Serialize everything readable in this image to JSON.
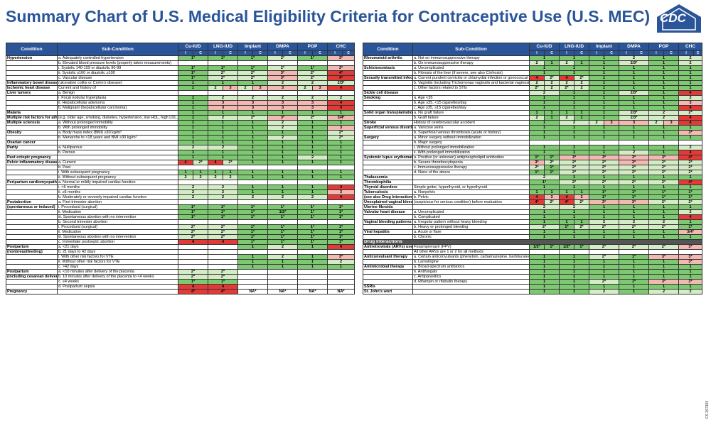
{
  "title": "Summary Chart of U.S. Medical Eligibility Criteria for Contraceptive Use (U.S. MEC)",
  "logo": "CDC",
  "colors": {
    "c1": "#7ec872",
    "c2": "#d4ecc6",
    "c3": "#f4b8b3",
    "c4": "#e23a37",
    "header": "#2b5599"
  },
  "headers": {
    "condition": "Condition",
    "subcondition": "Sub-Condition",
    "methods": [
      "Cu-IUD",
      "LNG-IUD",
      "Implant",
      "DMPA",
      "POP",
      "CHC"
    ],
    "ic": [
      "I",
      "C"
    ]
  },
  "footnote": "CS 267303",
  "left": [
    {
      "c": "Hypertension",
      "s": "a. Adequately controlled hypertension",
      "v": [
        "1*",
        "",
        "1*",
        "",
        "1*",
        "2*",
        "1*",
        "3*"
      ]
    },
    {
      "c": "",
      "s": "b. Elevated blood pressure levels (properly taken measurements)",
      "v": [
        "",
        "",
        "",
        "",
        "",
        "",
        "",
        ""
      ]
    },
    {
      "c": "",
      "s": "i. Systolic 140-159 or diastolic 90-99",
      "v": [
        "1*",
        "",
        "1*",
        "",
        "1*",
        "2*",
        "1*",
        "3*"
      ]
    },
    {
      "c": "",
      "s": "ii. Systolic ≥160 or diastolic ≥100",
      "v": [
        "1*",
        "",
        "2*",
        "",
        "2*",
        "3*",
        "2*",
        "4*"
      ]
    },
    {
      "c": "",
      "s": "c. Vascular disease",
      "v": [
        "1*",
        "",
        "2*",
        "",
        "2*",
        "3*",
        "2*",
        "4*"
      ]
    },
    {
      "c": "Inflammatory bowel disease",
      "s": "(ulcerative colitis or Crohn's disease)",
      "v": [
        "1",
        "",
        "1",
        "",
        "1",
        "2",
        "2",
        "2/3*"
      ]
    },
    {
      "c": "Ischemic heart disease",
      "s": "Current and history of",
      "v": [
        "1",
        "",
        "2",
        "3",
        "2|3",
        "3",
        "2|3",
        "4"
      ]
    },
    {
      "c": "Liver tumors",
      "s": "a. Benign",
      "v": [
        "",
        "",
        "",
        "",
        "",
        "",
        "",
        ""
      ]
    },
    {
      "c": "",
      "s": "i. Focal nodular hyperplasia",
      "v": [
        "1",
        "",
        "2",
        "",
        "2",
        "2",
        "2",
        "2"
      ]
    },
    {
      "c": "",
      "s": "ii. Hepatocellular adenoma",
      "v": [
        "1",
        "",
        "3",
        "",
        "3",
        "3",
        "3",
        "4"
      ]
    },
    {
      "c": "",
      "s": "b. Malignant (hepatocellular carcinoma)",
      "v": [
        "1",
        "",
        "3",
        "",
        "3",
        "3",
        "3",
        "4"
      ]
    },
    {
      "c": "Malaria",
      "s": "",
      "v": [
        "1",
        "",
        "1",
        "",
        "1",
        "1",
        "1",
        "1"
      ]
    },
    {
      "c": "Multiple risk factors for atherosclerotic cardiovascular disease",
      "s": "(e.g. older age, smoking, diabetes, hypertension, low HDL, high LDL, or high triglyceride levels)",
      "v": [
        "1",
        "",
        "2",
        "",
        "2*",
        "3*",
        "2*",
        "3/4*"
      ]
    },
    {
      "c": "Multiple sclerosis",
      "s": "a. Without prolonged immobility",
      "v": [
        "1",
        "",
        "1",
        "",
        "1",
        "2",
        "1",
        "1"
      ]
    },
    {
      "c": "",
      "s": "b. With prolonged immobility",
      "v": [
        "1",
        "",
        "1",
        "",
        "1",
        "2",
        "1",
        "3"
      ]
    },
    {
      "c": "Obesity",
      "s": "a. Body mass index (BMI) ≥30 kg/m²",
      "v": [
        "1",
        "",
        "1",
        "",
        "1",
        "1",
        "1",
        "2*"
      ]
    },
    {
      "c": "",
      "s": "b. Menarche to <18 years and BMI ≥30 kg/m²",
      "v": [
        "1",
        "",
        "1",
        "",
        "1",
        "2",
        "1",
        "2*"
      ]
    },
    {
      "c": "Ovarian cancer",
      "s": "",
      "v": [
        "1",
        "",
        "1",
        "",
        "1",
        "1",
        "1",
        "1"
      ]
    },
    {
      "c": "Parity",
      "s": "a. Nulliparous",
      "v": [
        "2",
        "",
        "2",
        "",
        "1",
        "1",
        "1",
        "1"
      ]
    },
    {
      "c": "",
      "s": "b. Parous",
      "v": [
        "1",
        "",
        "1",
        "",
        "1",
        "1",
        "1",
        "1"
      ]
    },
    {
      "c": "Past ectopic pregnancy",
      "s": "",
      "v": [
        "1",
        "",
        "1",
        "",
        "1",
        "1",
        "2",
        "1"
      ]
    },
    {
      "c": "Pelvic inflammatory disease",
      "s": "a. Current",
      "v": [
        "4",
        "2*",
        "4",
        "2*",
        "1",
        "1",
        "1",
        "1"
      ]
    },
    {
      "c": "",
      "s": "b. Past",
      "v": [
        "",
        "",
        "",
        "",
        "",
        "",
        "",
        ""
      ]
    },
    {
      "c": "",
      "s": "i. With subsequent pregnancy",
      "v": [
        "1",
        "1",
        "1",
        "1",
        "1",
        "1",
        "1",
        "1"
      ]
    },
    {
      "c": "",
      "s": "ii. Without subsequent pregnancy",
      "v": [
        "2",
        "2",
        "2",
        "2",
        "1",
        "1",
        "1",
        "1"
      ]
    },
    {
      "c": "Peripartum cardiomyopathy",
      "s": "a. Normal or mildly impaired cardiac function",
      "v": [
        "",
        "",
        "",
        "",
        "",
        "",
        "",
        ""
      ]
    },
    {
      "c": "",
      "s": "i. <6 months",
      "v": [
        "2",
        "",
        "2",
        "",
        "1",
        "1",
        "1",
        "4"
      ]
    },
    {
      "c": "",
      "s": "ii. ≥6 months",
      "v": [
        "2",
        "",
        "2",
        "",
        "1",
        "1",
        "1",
        "3"
      ]
    },
    {
      "c": "",
      "s": "b. Moderately or severely impaired cardiac function",
      "v": [
        "2",
        "",
        "2",
        "",
        "2",
        "2",
        "2",
        "4"
      ]
    },
    {
      "c": "Postabortion",
      "s": "a. First trimester abortion",
      "v": [
        "",
        "",
        "",
        "",
        "",
        "",
        "",
        ""
      ]
    },
    {
      "c": "(spontaneous or induced)",
      "s": "i. Procedural (surgical)",
      "v": [
        "1*",
        "",
        "1*",
        "",
        "1*",
        "1*",
        "1*",
        "1*"
      ]
    },
    {
      "c": "",
      "s": "ii. Medication",
      "v": [
        "1*",
        "",
        "1*",
        "",
        "1*",
        "1/2*",
        "1*",
        "1*"
      ]
    },
    {
      "c": "",
      "s": "iii. Spontaneous abortion with no intervention",
      "v": [
        "1*",
        "",
        "1*",
        "",
        "1*",
        "1*",
        "1*",
        "1*"
      ]
    },
    {
      "c": "",
      "s": "b. Second trimester abortion",
      "v": [
        "",
        "",
        "",
        "",
        "",
        "",
        "",
        ""
      ]
    },
    {
      "c": "",
      "s": "i. Procedural (surgical)",
      "v": [
        "2*",
        "",
        "2*",
        "",
        "1*",
        "1*",
        "1*",
        "1*"
      ]
    },
    {
      "c": "",
      "s": "ii. Medication",
      "v": [
        "2*",
        "",
        "2*",
        "",
        "1*",
        "1*",
        "1*",
        "1*"
      ]
    },
    {
      "c": "",
      "s": "iii. Spontaneous abortion with no intervention",
      "v": [
        "2*",
        "",
        "2*",
        "",
        "1*",
        "1*",
        "1*",
        "1*"
      ]
    },
    {
      "c": "",
      "s": "c. Immediate postseptic abortion",
      "v": [
        "4",
        "",
        "4",
        "",
        "1*",
        "1*",
        "1*",
        "1*"
      ]
    },
    {
      "c": "Postpartum",
      "s": "a. <21 days",
      "v": [
        "",
        "",
        "",
        "",
        "1",
        "2",
        "1",
        "4"
      ]
    },
    {
      "c": "(nonbreastfeeding)",
      "s": "b. 21 days to 42 days",
      "v": [
        "",
        "",
        "",
        "",
        "",
        "",
        "",
        ""
      ]
    },
    {
      "c": "",
      "s": "i. With other risk factors for VTE",
      "v": [
        "",
        "",
        "",
        "",
        "1",
        "2",
        "1",
        "3*"
      ]
    },
    {
      "c": "",
      "s": "ii. Without other risk factors for VTE",
      "v": [
        "",
        "",
        "",
        "",
        "1",
        "1",
        "1",
        "2"
      ]
    },
    {
      "c": "",
      "s": "c. >42 days",
      "v": [
        "",
        "",
        "",
        "",
        "1",
        "1",
        "1",
        "1"
      ]
    },
    {
      "c": "Postpartum",
      "s": "a. <10 minutes after delivery of the placenta",
      "v": [
        "2*",
        "",
        "2*",
        "",
        "",
        "",
        "",
        ""
      ]
    },
    {
      "c": "(including cesarean delivery, breastfeeding, or nonbreastfeeding)",
      "s": "b. 10 minutes after delivery of the placenta to <4 weeks",
      "v": [
        "2*",
        "",
        "2*",
        "",
        "",
        "",
        "",
        ""
      ]
    },
    {
      "c": "",
      "s": "c. ≥4 weeks",
      "v": [
        "1*",
        "",
        "1*",
        "",
        "",
        "",
        "",
        ""
      ]
    },
    {
      "c": "",
      "s": "d. Postpartum sepsis",
      "v": [
        "4",
        "",
        "4",
        "",
        "",
        "",
        "",
        ""
      ]
    },
    {
      "c": "Pregnancy",
      "s": "",
      "v": [
        "4*",
        "",
        "4*",
        "",
        "NA*",
        "NA*",
        "NA*",
        "NA*"
      ]
    }
  ],
  "right": [
    {
      "c": "Rheumatoid arthritis",
      "s": "a. Not on immunosuppressive therapy",
      "v": [
        "1",
        "",
        "1",
        "",
        "1",
        "2",
        "1",
        "2"
      ]
    },
    {
      "c": "",
      "s": "b. On immunosuppressive therapy",
      "v": [
        "2",
        "1",
        "2",
        "1",
        "1",
        "2/3*",
        "1",
        "2"
      ]
    },
    {
      "c": "Schistosomiasis",
      "s": "a. Uncomplicated",
      "v": [
        "1",
        "",
        "1",
        "",
        "1",
        "1",
        "1",
        "1"
      ]
    },
    {
      "c": "",
      "s": "b. Fibrosis of the liver (if severe, see also Cirrhosis)",
      "v": [
        "1",
        "",
        "1",
        "",
        "1",
        "1",
        "1",
        "1"
      ]
    },
    {
      "c": "Sexually transmitted infections (STIs)",
      "s": "a. Current purulent cervicitis or chlamydial infection or gonococcal infection",
      "v": [
        "4",
        "2*",
        "4",
        "2*",
        "1",
        "1",
        "1",
        "1"
      ]
    },
    {
      "c": "",
      "s": "b. Vaginitis (including Trichomonas vaginalis and bacterial vaginosis)",
      "v": [
        "2",
        "2",
        "2",
        "2",
        "1",
        "1",
        "1",
        "1"
      ]
    },
    {
      "c": "",
      "s": "c. Other factors related to STIs",
      "v": [
        "2*",
        "2",
        "2*",
        "2",
        "1",
        "1",
        "1",
        "1"
      ]
    },
    {
      "c": "Sickle cell disease",
      "s": "",
      "v": [
        "2",
        "",
        "1",
        "",
        "1",
        "2/3*",
        "1",
        "4"
      ]
    },
    {
      "c": "Smoking",
      "s": "a. Age <35",
      "v": [
        "1",
        "",
        "1",
        "",
        "1",
        "1",
        "1",
        "2"
      ]
    },
    {
      "c": "",
      "s": "b. Age ≥35, <15 cigarettes/day",
      "v": [
        "1",
        "",
        "1",
        "",
        "1",
        "1",
        "1",
        "3"
      ]
    },
    {
      "c": "",
      "s": "c. Age ≥35, ≥15 cigarettes/day",
      "v": [
        "1",
        "",
        "1",
        "",
        "1",
        "1",
        "1",
        "4"
      ]
    },
    {
      "c": "Solid organ transplantation",
      "s": "a. No graft failure",
      "v": [
        "1",
        "1",
        "1",
        "1",
        "1",
        "2/3*",
        "2",
        "2*"
      ]
    },
    {
      "c": "",
      "s": "b. Graft failure",
      "v": [
        "2",
        "1",
        "2",
        "1",
        "1",
        "2/3*",
        "2",
        "4"
      ]
    },
    {
      "c": "Stroke",
      "s": "History of cerebrovascular accident",
      "v": [
        "1",
        "",
        "2",
        "",
        "2|3",
        "3",
        "2|3",
        "4"
      ]
    },
    {
      "c": "Superficial venous disorders",
      "s": "a. Varicose veins",
      "v": [
        "1",
        "",
        "1",
        "",
        "1",
        "1",
        "1",
        "1"
      ]
    },
    {
      "c": "",
      "s": "b. Superficial venous thrombosis (acute or history)",
      "v": [
        "1",
        "",
        "1",
        "",
        "1",
        "1",
        "1",
        "3*"
      ]
    },
    {
      "c": "Surgery",
      "s": "a. Minor surgery without immobilization",
      "v": [
        "1",
        "",
        "1",
        "",
        "1",
        "1",
        "1",
        "1"
      ]
    },
    {
      "c": "",
      "s": "b. Major surgery",
      "v": [
        "",
        "",
        "",
        "",
        "",
        "",
        "",
        ""
      ]
    },
    {
      "c": "",
      "s": "i. Without prolonged immobilization",
      "v": [
        "1",
        "",
        "1",
        "",
        "1",
        "1",
        "1",
        "2"
      ]
    },
    {
      "c": "",
      "s": "ii. With prolonged immobilization",
      "v": [
        "1",
        "",
        "1",
        "",
        "1",
        "2",
        "1",
        "4"
      ]
    },
    {
      "c": "Systemic lupus erythematosus",
      "s": "a. Positive (or unknown) antiphospholipid antibodies",
      "v": [
        "1*",
        "1*",
        "3*",
        "",
        "3*",
        "3*",
        "3*",
        "4*"
      ]
    },
    {
      "c": "",
      "s": "b. Severe thrombocytopenia",
      "v": [
        "3*",
        "2*",
        "2*",
        "",
        "2*",
        "3*",
        "2*",
        "2*"
      ]
    },
    {
      "c": "",
      "s": "c. Immunosuppressive therapy",
      "v": [
        "2*",
        "1*",
        "2*",
        "",
        "2*",
        "2*",
        "2*",
        "2*"
      ]
    },
    {
      "c": "",
      "s": "d. None of the above",
      "v": [
        "1*",
        "1*",
        "2*",
        "",
        "2*",
        "2*",
        "2*",
        "2*"
      ]
    },
    {
      "c": "Thalassemia",
      "s": "",
      "v": [
        "2",
        "",
        "1",
        "",
        "1",
        "1",
        "1",
        "1"
      ]
    },
    {
      "c": "Thrombophilia",
      "s": "",
      "v": [
        "1*",
        "",
        "2*",
        "",
        "2*",
        "2*",
        "2*",
        "4*"
      ]
    },
    {
      "c": "Thyroid disorders",
      "s": "Simple goiter, hyperthyroid, or hypothyroid",
      "v": [
        "1",
        "",
        "1",
        "",
        "1",
        "1",
        "1",
        "1"
      ]
    },
    {
      "c": "Tuberculosis",
      "s": "a. Nonpelvic",
      "v": [
        "1",
        "1",
        "1",
        "1",
        "1*",
        "1*",
        "1*",
        "1*"
      ]
    },
    {
      "c": "(see also Drug Interactions)",
      "s": "b. Pelvic",
      "v": [
        "4",
        "3",
        "4",
        "3",
        "1*",
        "1*",
        "1*",
        "1*"
      ]
    },
    {
      "c": "Unexplained vaginal bleeding",
      "s": "(suspicious for serious condition) before evaluation",
      "v": [
        "4*",
        "2*",
        "4*",
        "2*",
        "3*",
        "3*",
        "2*",
        "2*"
      ]
    },
    {
      "c": "Uterine fibroids",
      "s": "",
      "v": [
        "2",
        "",
        "2",
        "",
        "1",
        "1",
        "1",
        "1"
      ]
    },
    {
      "c": "Valvular heart disease",
      "s": "a. Uncomplicated",
      "v": [
        "1",
        "",
        "1",
        "",
        "1",
        "1",
        "1",
        "2"
      ]
    },
    {
      "c": "",
      "s": "b. Complicated",
      "v": [
        "1",
        "",
        "1",
        "",
        "1",
        "1",
        "1",
        "4"
      ]
    },
    {
      "c": "Vaginal bleeding patterns",
      "s": "a. Irregular pattern without heavy bleeding",
      "v": [
        "1",
        "",
        "1",
        "1",
        "2",
        "2",
        "2",
        "1"
      ]
    },
    {
      "c": "",
      "s": "b. Heavy or prolonged bleeding",
      "v": [
        "2*",
        "",
        "1*",
        "2*",
        "2*",
        "2*",
        "2*",
        "1*"
      ]
    },
    {
      "c": "Viral hepatitis",
      "s": "a. Acute or flare",
      "v": [
        "1",
        "",
        "1",
        "",
        "1",
        "1",
        "1",
        "3/4*"
      ]
    },
    {
      "c": "",
      "s": "b. Chronic",
      "v": [
        "1",
        "",
        "1",
        "",
        "1",
        "1",
        "1",
        "1"
      ]
    },
    {
      "sec": "Drug Interactions"
    },
    {
      "c": "Antiretrovirals (ARVs) used for prevention (PrEP) or treatment of HIV",
      "s": "Fosamprenavir (FPV)",
      "v": [
        "1/2*",
        "1*",
        "1/2*",
        "1*",
        "2*",
        "2*",
        "2*",
        "3*"
      ]
    },
    {
      "c": "",
      "s": "All other ARVs are 1 or 2 for all methods",
      "v": [
        "",
        "",
        "",
        "",
        "",
        "",
        "",
        ""
      ]
    },
    {
      "c": "Anticonvulsant therapy",
      "s": "a. Certain anticonvulsants (phenytoin, carbamazepine, barbiturates, primidone, topiramate, oxcarbazepine)",
      "v": [
        "1",
        "",
        "1",
        "",
        "2*",
        "1*",
        "3*",
        "3*"
      ]
    },
    {
      "c": "",
      "s": "b. Lamotrigine",
      "v": [
        "1",
        "",
        "1",
        "",
        "1",
        "1",
        "1",
        "3*"
      ]
    },
    {
      "c": "Antimicrobial therapy",
      "s": "a. Broad-spectrum antibiotics",
      "v": [
        "1",
        "",
        "1",
        "",
        "1",
        "1",
        "1",
        "1"
      ]
    },
    {
      "c": "",
      "s": "b. Antifungals",
      "v": [
        "1",
        "",
        "1",
        "",
        "1",
        "1",
        "1",
        "1"
      ]
    },
    {
      "c": "",
      "s": "c. Antiparasitics",
      "v": [
        "1",
        "",
        "1",
        "",
        "1",
        "1",
        "1",
        "1"
      ]
    },
    {
      "c": "",
      "s": "d. Rifampin or rifabutin therapy",
      "v": [
        "1",
        "",
        "1",
        "",
        "2*",
        "1*",
        "3*",
        "3*"
      ]
    },
    {
      "c": "SSRIs",
      "s": "",
      "v": [
        "1",
        "",
        "1",
        "",
        "1",
        "1",
        "1",
        "1"
      ]
    },
    {
      "c": "St. John's wort",
      "s": "",
      "v": [
        "1",
        "",
        "1",
        "",
        "2",
        "1",
        "2",
        "2"
      ]
    }
  ]
}
